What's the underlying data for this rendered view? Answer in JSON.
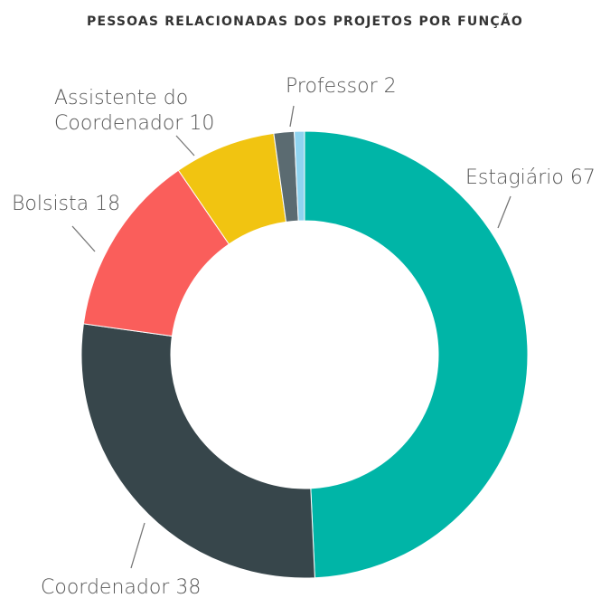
{
  "chart_data": {
    "type": "donut",
    "title": "PESSOAS RELACIONADAS DOS PROJETOS POR FUNÇÃO",
    "categories": [
      "Estagiário",
      "Coordenador",
      "Bolsista",
      "Assistente do Coordenador",
      "Professor",
      null
    ],
    "values": [
      67,
      38,
      18,
      10,
      2,
      1
    ],
    "colors": [
      "#00b5a7",
      "#37464b",
      "#fa5e5b",
      "#f1c411",
      "#5b6b71",
      "#8fd4f0"
    ]
  }
}
